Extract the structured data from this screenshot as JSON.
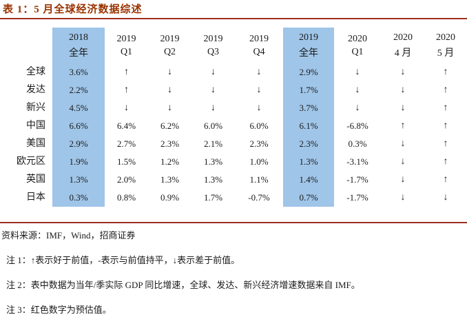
{
  "title": "表 1：5 月全球经济数据综述",
  "colors": {
    "highlight": "#9FC5E8",
    "title": "#993300",
    "rule": "#9B2D1F",
    "text": "#1a1a1a"
  },
  "table": {
    "col_headers": [
      {
        "line1": "2018",
        "line2": "全年",
        "highlight": true
      },
      {
        "line1": "2019",
        "line2": "Q1",
        "highlight": false
      },
      {
        "line1": "2019",
        "line2": "Q2",
        "highlight": false
      },
      {
        "line1": "2019",
        "line2": "Q3",
        "highlight": false
      },
      {
        "line1": "2019",
        "line2": "Q4",
        "highlight": false
      },
      {
        "line1": "2019",
        "line2": "全年",
        "highlight": true
      },
      {
        "line1": "2020",
        "line2": "Q1",
        "highlight": false
      },
      {
        "line1": "2020",
        "line2": "4 月",
        "highlight": false
      },
      {
        "line1": "2020",
        "line2": "5 月",
        "highlight": false
      }
    ],
    "rows": [
      {
        "label": "全球",
        "values": [
          "3.6%",
          "↑",
          "↓",
          "↓",
          "↓",
          "2.9%",
          "↓",
          "↓",
          "↑"
        ]
      },
      {
        "label": "发达",
        "values": [
          "2.2%",
          "↑",
          "↓",
          "↓",
          "↓",
          "1.7%",
          "↓",
          "↓",
          "↑"
        ]
      },
      {
        "label": "新兴",
        "values": [
          "4.5%",
          "↓",
          "↓",
          "↓",
          "↓",
          "3.7%",
          "↓",
          "↓",
          "↑"
        ]
      },
      {
        "label": "中国",
        "values": [
          "6.6%",
          "6.4%",
          "6.2%",
          "6.0%",
          "6.0%",
          "6.1%",
          "-6.8%",
          "↑",
          "↑"
        ]
      },
      {
        "label": "美国",
        "values": [
          "2.9%",
          "2.7%",
          "2.3%",
          "2.1%",
          "2.3%",
          "2.3%",
          "0.3%",
          "↓",
          "↑"
        ]
      },
      {
        "label": "欧元区",
        "values": [
          "1.9%",
          "1.5%",
          "1.2%",
          "1.3%",
          "1.0%",
          "1.3%",
          "-3.1%",
          "↓",
          "↑"
        ]
      },
      {
        "label": "英国",
        "values": [
          "1.3%",
          "2.0%",
          "1.3%",
          "1.3%",
          "1.1%",
          "1.4%",
          "-1.7%",
          "↓",
          "↑"
        ]
      },
      {
        "label": "日本",
        "values": [
          "0.3%",
          "0.8%",
          "0.9%",
          "1.7%",
          "-0.7%",
          "0.7%",
          "-1.7%",
          "↓",
          "↓"
        ]
      }
    ]
  },
  "footer": {
    "source": "资料来源：IMF，Wind，招商证券",
    "notes": [
      "注 1：↑表示好于前值，-表示与前值持平，↓表示差于前值。",
      "注 2：表中数据为当年/季实际 GDP 同比增速，全球、发达、新兴经济增速数据来自 IMF。",
      "注 3：红色数字为预估值。"
    ]
  }
}
